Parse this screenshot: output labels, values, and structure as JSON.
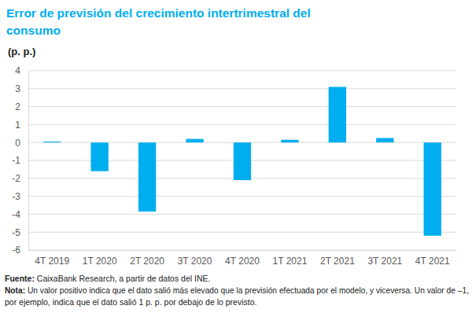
{
  "chart_data": {
    "type": "bar",
    "title": "Error de previsión del crecimiento intertrimestral del consumo",
    "subtitle": "(p. p.)",
    "categories": [
      "4T 2019",
      "1T 2020",
      "2T 2020",
      "3T 2020",
      "4T 2020",
      "1T 2021",
      "2T 2021",
      "3T 2021",
      "4T 2021"
    ],
    "values": [
      0.05,
      -1.6,
      -3.85,
      0.2,
      -2.1,
      0.15,
      3.1,
      0.25,
      -5.2
    ],
    "color": "#00aeef",
    "ylim": [
      -6,
      4
    ],
    "yticks": [
      -6,
      -5,
      -4,
      -3,
      -2,
      -1,
      0,
      1,
      2,
      3,
      4
    ],
    "grid": true,
    "source": "Fuente: CaixaBank Research, a partir de datos del INE.",
    "note": [
      "Nota: Un valor positivo indica que el dato salió más elevado que la previsión efectuada por el modelo, y viceversa. Un valor de –1,",
      "por ejemplo, indica que el dato salió 1 p. p. por debajo de lo previsto."
    ]
  }
}
